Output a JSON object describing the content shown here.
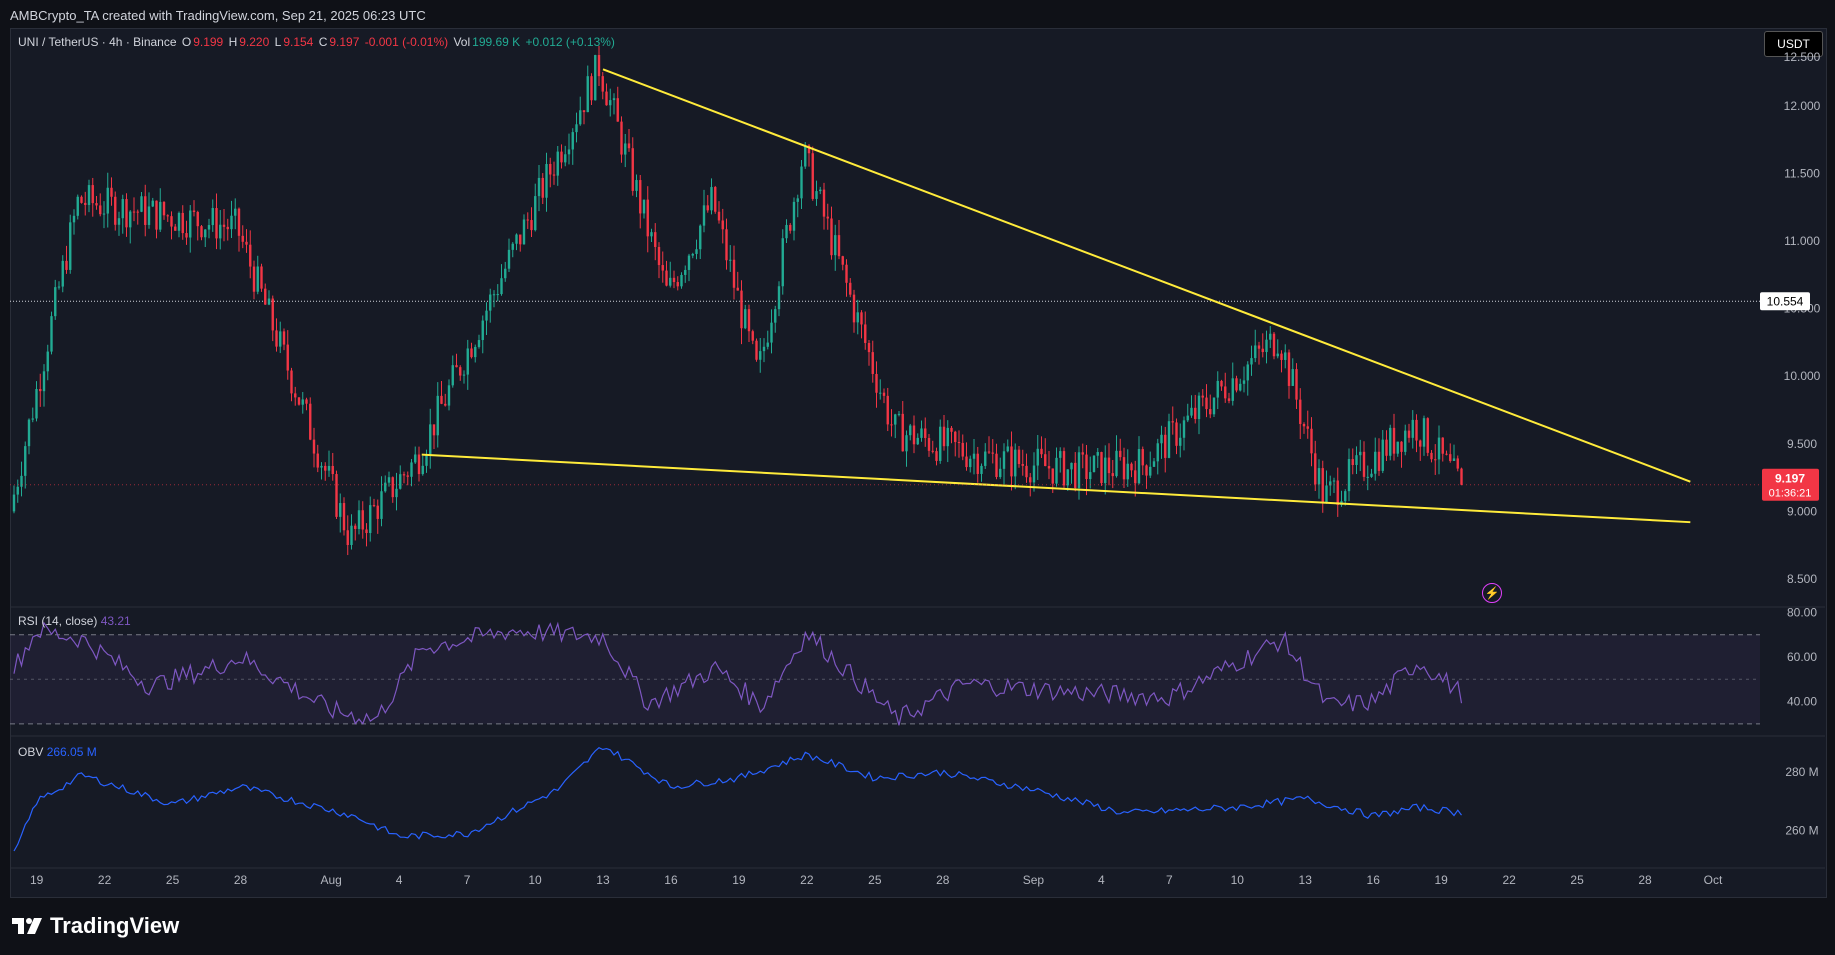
{
  "attribution": "AMBCrypto_TA created with TradingView.com, Sep 21, 2025 06:23 UTC",
  "header": {
    "symbol": "UNI / TetherUS · 4h · Binance",
    "o_label": "O",
    "o_value": "9.199",
    "h_label": "H",
    "h_value": "9.220",
    "l_label": "L",
    "l_value": "9.154",
    "c_label": "C",
    "c_value": "9.197",
    "change": "-0.001 (-0.01%)",
    "vol_label": "Vol",
    "vol_value": "199.69 K",
    "vol_change": "+0.012 (+0.13%)"
  },
  "currency": "USDT",
  "price_labels": {
    "level_line": "10.554",
    "last_price": "9.197",
    "countdown": "01:36:21"
  },
  "rsi_pane": {
    "title": "RSI (14, close)",
    "value": "43.21"
  },
  "obv_pane": {
    "title": "OBV",
    "value": "266.05 M"
  },
  "footer": {
    "brand": "TradingView"
  },
  "colors": {
    "background": "#161a25",
    "up": "#22ab94",
    "down": "#f23645",
    "trendline": "#ffeb3b",
    "rsi": "#7e57c2",
    "obv": "#2962ff"
  },
  "chart_data": [
    {
      "type": "candlestick",
      "title": "UNI / TetherUS · 4h · Binance",
      "price_axis_ticks": [
        "12.000",
        "11.500",
        "11.000",
        "10.500",
        "10.000",
        "9.500",
        "9.000",
        "8.500"
      ],
      "price_axis_top_partial": "12.500",
      "x_tick_labels": [
        "19",
        "22",
        "25",
        "28",
        "Aug",
        "4",
        "7",
        "10",
        "13",
        "16",
        "19",
        "22",
        "25",
        "28",
        "Sep",
        "4",
        "7",
        "10",
        "13",
        "16",
        "19",
        "22",
        "25",
        "28",
        "Oct"
      ],
      "ylim": [
        8.3,
        12.45
      ],
      "horizontal_level": 10.554,
      "last_close": 9.197,
      "key_prices": [
        {
          "date": "Jul 18",
          "price": 9.0
        },
        {
          "date": "Jul 21",
          "price": 11.3
        },
        {
          "date": "Jul 28",
          "price": 11.1
        },
        {
          "date": "Aug 2",
          "price": 8.8
        },
        {
          "date": "Aug 5",
          "price": 9.4
        },
        {
          "date": "Aug 13",
          "price": 12.3
        },
        {
          "date": "Aug 16",
          "price": 10.6
        },
        {
          "date": "Aug 18",
          "price": 11.3
        },
        {
          "date": "Aug 20",
          "price": 10.0
        },
        {
          "date": "Aug 22",
          "price": 11.65
        },
        {
          "date": "Aug 26",
          "price": 9.6
        },
        {
          "date": "Aug 30",
          "price": 9.4
        },
        {
          "date": "Sep 3",
          "price": 9.3
        },
        {
          "date": "Sep 6",
          "price": 9.35
        },
        {
          "date": "Sep 12",
          "price": 10.3
        },
        {
          "date": "Sep 14",
          "price": 9.1
        },
        {
          "date": "Sep 18",
          "price": 9.65
        },
        {
          "date": "Sep 20",
          "price": 9.2
        }
      ],
      "trendlines": [
        {
          "name": "upper",
          "from": {
            "date": "Aug 13",
            "price": 12.27
          },
          "to": {
            "date": "Sep 30",
            "price": 9.22
          }
        },
        {
          "name": "lower",
          "from": {
            "date": "Aug 5",
            "price": 9.42
          },
          "to": {
            "date": "Sep 30",
            "price": 8.92
          }
        }
      ]
    },
    {
      "type": "line",
      "title": "RSI (14, close)",
      "value": 43.21,
      "ylim": [
        25,
        82
      ],
      "y_ticks": [
        "80.00",
        "60.00",
        "40.00"
      ],
      "bands": [
        70,
        50,
        30
      ],
      "points": [
        {
          "date": "Jul 18",
          "value": 55
        },
        {
          "date": "Jul 19",
          "value": 72
        },
        {
          "date": "Jul 21",
          "value": 68
        },
        {
          "date": "Jul 24",
          "value": 47
        },
        {
          "date": "Jul 27",
          "value": 56
        },
        {
          "date": "Jul 28",
          "value": 60
        },
        {
          "date": "Aug 1",
          "value": 36
        },
        {
          "date": "Aug 3",
          "value": 32
        },
        {
          "date": "Aug 5",
          "value": 64
        },
        {
          "date": "Aug 9",
          "value": 72
        },
        {
          "date": "Aug 13",
          "value": 69
        },
        {
          "date": "Aug 15",
          "value": 39
        },
        {
          "date": "Aug 18",
          "value": 55
        },
        {
          "date": "Aug 20",
          "value": 38
        },
        {
          "date": "Aug 22",
          "value": 71
        },
        {
          "date": "Aug 26",
          "value": 32
        },
        {
          "date": "Aug 29",
          "value": 48
        },
        {
          "date": "Sep 3",
          "value": 44
        },
        {
          "date": "Sep 7",
          "value": 42
        },
        {
          "date": "Sep 12",
          "value": 68
        },
        {
          "date": "Sep 14",
          "value": 38
        },
        {
          "date": "Sep 16",
          "value": 40
        },
        {
          "date": "Sep 18",
          "value": 58
        },
        {
          "date": "Sep 20",
          "value": 43
        }
      ]
    },
    {
      "type": "line",
      "title": "OBV",
      "value_label": "266.05M",
      "y_ticks": [
        "280 M",
        "260 M"
      ],
      "unit": "M",
      "ylim": [
        250,
        292
      ],
      "points": [
        {
          "date": "Jul 18",
          "value": 252
        },
        {
          "date": "Jul 19",
          "value": 270
        },
        {
          "date": "Jul 21",
          "value": 279
        },
        {
          "date": "Jul 25",
          "value": 269
        },
        {
          "date": "Jul 28",
          "value": 275
        },
        {
          "date": "Aug 2",
          "value": 265
        },
        {
          "date": "Aug 4",
          "value": 258
        },
        {
          "date": "Aug 7",
          "value": 259
        },
        {
          "date": "Aug 11",
          "value": 274
        },
        {
          "date": "Aug 13",
          "value": 289
        },
        {
          "date": "Aug 16",
          "value": 275
        },
        {
          "date": "Aug 19",
          "value": 278
        },
        {
          "date": "Aug 22",
          "value": 286
        },
        {
          "date": "Aug 25",
          "value": 278
        },
        {
          "date": "Aug 28",
          "value": 280
        },
        {
          "date": "Sep 1",
          "value": 274
        },
        {
          "date": "Sep 5",
          "value": 266
        },
        {
          "date": "Sep 10",
          "value": 268
        },
        {
          "date": "Sep 13",
          "value": 271
        },
        {
          "date": "Sep 16",
          "value": 265
        },
        {
          "date": "Sep 18",
          "value": 268
        },
        {
          "date": "Sep 20",
          "value": 266
        }
      ]
    }
  ]
}
